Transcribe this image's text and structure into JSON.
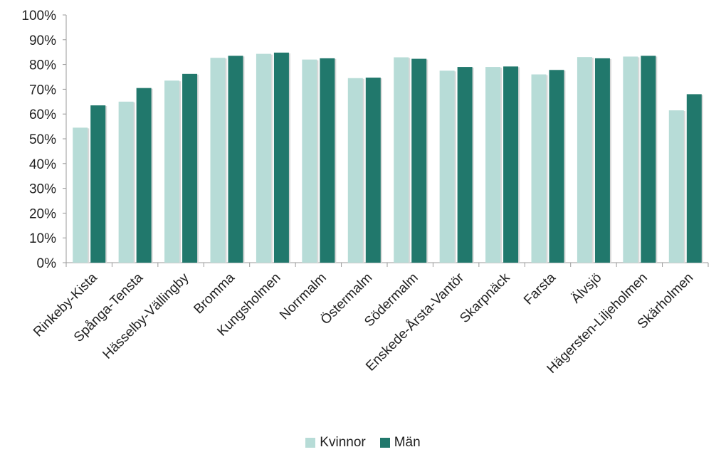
{
  "chart_data": {
    "type": "bar",
    "categories": [
      "Rinkeby-Kista",
      "Spånga-Tensta",
      "Hässelby-Vällingby",
      "Bromma",
      "Kungsholmen",
      "Norrmalm",
      "Östermalm",
      "Södermalm",
      "Enskede-Årsta-Vantör",
      "Skarpnäck",
      "Farsta",
      "Älvsjö",
      "Hägersten-Liljeholmen",
      "Skärholmen"
    ],
    "series": [
      {
        "name": "Kvinnor",
        "color": "#b7dcd7",
        "values": [
          54.5,
          65,
          73.5,
          82.7,
          84.3,
          82,
          74.5,
          82.9,
          77.5,
          79,
          76,
          83,
          83.2,
          61.5
        ]
      },
      {
        "name": "Män",
        "color": "#21786c",
        "values": [
          63.5,
          70.5,
          76.2,
          83.5,
          84.8,
          82.5,
          74.7,
          82.3,
          79,
          79.2,
          77.8,
          82.5,
          83.5,
          68
        ]
      }
    ],
    "yticks": [
      "0%",
      "10%",
      "20%",
      "30%",
      "40%",
      "50%",
      "60%",
      "70%",
      "80%",
      "90%",
      "100%"
    ],
    "ylim": [
      0,
      100
    ],
    "legend_position": "bottom",
    "grid": false
  }
}
